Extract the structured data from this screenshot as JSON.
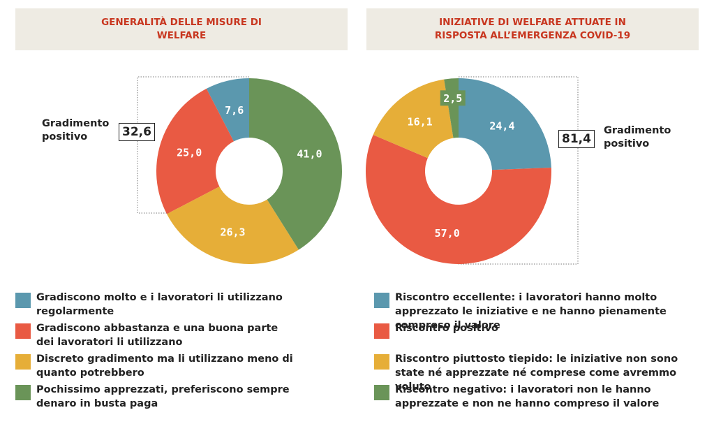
{
  "chart_data": [
    {
      "type": "pie",
      "title": "GENERALITÀ DELLE MISURE DI WELFARE",
      "direction": "counterclockwise",
      "categories": [
        "Gradiscono molto e i lavoratori li utilizzano regolarmente",
        "Gradiscono abbastanza e una buona parte dei lavoratori li utilizzano",
        "Discreto gradimento ma li utilizzano meno di quanto potrebbero",
        "Pochissimo apprezzati, preferiscono sempre denaro in busta paga"
      ],
      "values": [
        7.6,
        25.0,
        26.3,
        41.0
      ],
      "value_labels": [
        "7,6",
        "25,0",
        "26,3",
        "41,0"
      ],
      "colors": [
        "#5b98ae",
        "#e95a43",
        "#e6ae38",
        "#6a9458"
      ],
      "annotation": {
        "text": "Gradimento positivo",
        "value": 32.6,
        "label": "32,6"
      }
    },
    {
      "type": "pie",
      "title": "INIZIATIVE DI WELFARE ATTUATE IN RISPOSTA ALL’EMERGENZA COVID-19",
      "direction": "clockwise",
      "categories": [
        "Riscontro eccellente: i lavoratori hanno molto apprezzato le iniziative e ne hanno pienamente compreso il valore",
        "Riscontro positivo",
        "Riscontro piuttosto tiepido: le iniziative non sono state né apprezzate né comprese come avremmo voluto",
        "Riscontro negativo: i lavoratori non le hanno apprezzate e non ne hanno compreso il valore"
      ],
      "values": [
        24.4,
        57.0,
        16.1,
        2.5
      ],
      "value_labels": [
        "24,4",
        "57,0",
        "16,1",
        "2,5"
      ],
      "colors": [
        "#5b98ae",
        "#e95a43",
        "#e6ae38",
        "#6a9458"
      ],
      "annotation": {
        "text": "Gradimento positivo",
        "value": 81.4,
        "label": "81,4"
      }
    }
  ]
}
